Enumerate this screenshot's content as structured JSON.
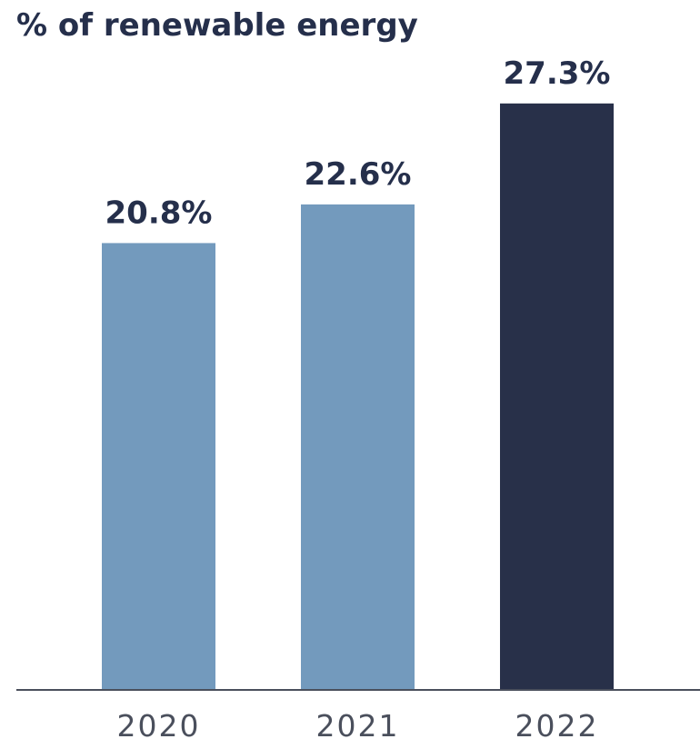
{
  "chart_data": {
    "type": "bar",
    "title": "% of renewable energy",
    "categories": [
      "2020",
      "2021",
      "2022"
    ],
    "values": [
      20.8,
      22.6,
      27.3
    ],
    "value_labels": [
      "20.8%",
      "22.6%",
      "27.3%"
    ],
    "unit": "%",
    "xlabel": "",
    "ylabel": "",
    "ylim": [
      0,
      30
    ],
    "grid": false,
    "legend": "none",
    "colors": {
      "default_bar": "#739abd",
      "highlight_bar": "#283049",
      "axis": "#4a4f5c",
      "text": "#252f4b"
    },
    "highlight_index": 2
  }
}
